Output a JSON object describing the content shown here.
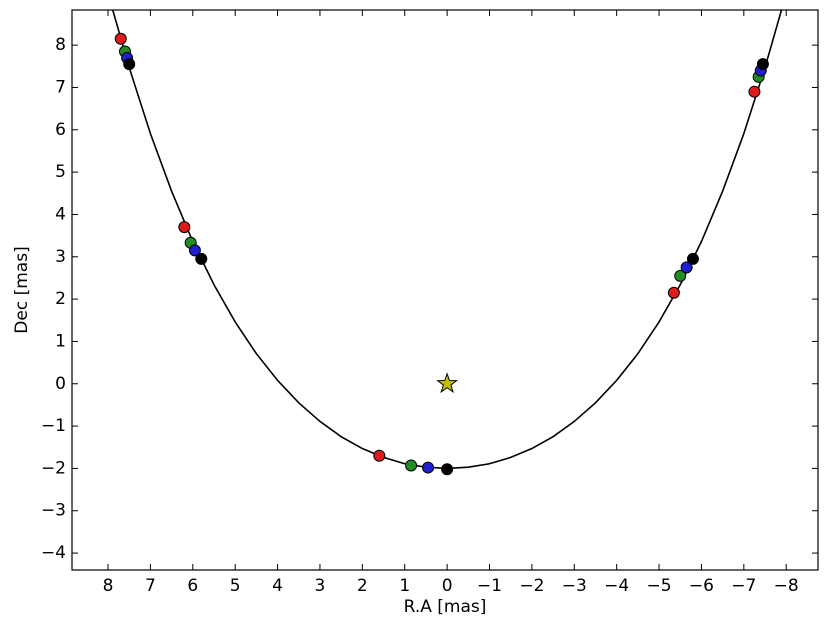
{
  "chart_data": {
    "type": "scatter",
    "xlabel": "R.A [mas]",
    "ylabel": "Dec [mas]",
    "xlim": [
      8.85,
      -8.75
    ],
    "ylim": [
      -4.4,
      8.83
    ],
    "xticks": [
      8,
      7,
      6,
      5,
      4,
      3,
      2,
      1,
      0,
      {
        "value": -1,
        "label": "−1"
      },
      {
        "value": -2,
        "label": "−2"
      },
      {
        "value": -3,
        "label": "−3"
      },
      {
        "value": -4,
        "label": "−4"
      },
      {
        "value": -5,
        "label": "−5"
      },
      {
        "value": -6,
        "label": "−6"
      },
      {
        "value": -7,
        "label": "−7"
      },
      {
        "value": -8,
        "label": "−8"
      }
    ],
    "yticks": [
      {
        "value": -4,
        "label": "−4"
      },
      {
        "value": -3,
        "label": "−3"
      },
      {
        "value": -2,
        "label": "−2"
      },
      {
        "value": -1,
        "label": "−1"
      },
      0,
      1,
      2,
      3,
      4,
      5,
      6,
      7,
      8
    ],
    "curve": {
      "color": "#000000",
      "x": [
        7.9,
        7.5,
        7,
        6.5,
        6,
        5.5,
        5,
        4.5,
        4,
        3.5,
        3,
        2.5,
        2,
        1.5,
        1,
        0.5,
        0,
        -0.5,
        -1,
        -1.5,
        -2,
        -2.5,
        -3,
        -3.5,
        -4,
        -4.5,
        -5,
        -5.5,
        -6,
        -6.5,
        -7,
        -7.5,
        -7.9
      ],
      "y": [
        8.87,
        7.47,
        5.91,
        4.55,
        3.36,
        2.34,
        1.46,
        0.71,
        0.08,
        -0.45,
        -0.89,
        -1.25,
        -1.53,
        -1.74,
        -1.89,
        -1.97,
        -2,
        -1.97,
        -1.89,
        -1.74,
        -1.53,
        -1.25,
        -0.89,
        -0.45,
        0.08,
        0.71,
        1.46,
        2.34,
        3.36,
        4.55,
        5.91,
        7.47,
        8.87
      ]
    },
    "series": [
      {
        "color": "#dd1c1c",
        "x": [
          7.7,
          6.2,
          1.6,
          -5.35,
          -7.25
        ],
        "y": [
          8.15,
          3.7,
          -1.7,
          2.15,
          6.9
        ]
      },
      {
        "color": "#228b22",
        "x": [
          7.6,
          6.05,
          0.85,
          -5.5,
          -7.35
        ],
        "y": [
          7.85,
          3.33,
          -1.93,
          2.55,
          7.25
        ]
      },
      {
        "color": "#1f1fd0",
        "x": [
          7.55,
          5.95,
          0.45,
          -5.65,
          -7.4
        ],
        "y": [
          7.7,
          3.15,
          -1.98,
          2.75,
          7.4
        ]
      },
      {
        "color": "#000000",
        "x": [
          7.5,
          5.8,
          0,
          -5.8,
          -7.45
        ],
        "y": [
          7.55,
          2.95,
          -2.02,
          2.95,
          7.55
        ]
      }
    ],
    "star": {
      "color": "#bfbf00",
      "x": [
        0
      ],
      "y": [
        0
      ]
    }
  }
}
